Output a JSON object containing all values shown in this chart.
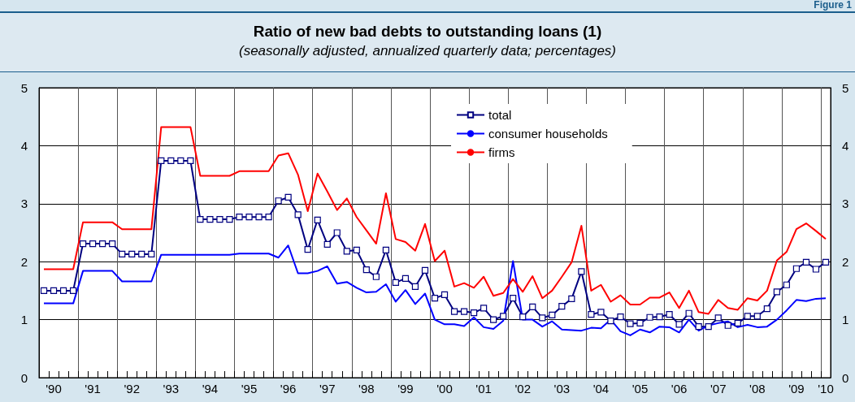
{
  "chart_data": {
    "type": "line",
    "title": "Ratio of new bad debts to outstanding loans (1)",
    "subtitle": "(seasonally adjusted, annualized quarterly data; percentages)",
    "annotations": [
      "Figure 1"
    ],
    "categories": [
      null,
      "'90",
      null,
      null,
      null,
      "'91",
      null,
      null,
      null,
      "'92",
      null,
      null,
      null,
      "'93",
      null,
      null,
      null,
      "'94",
      null,
      null,
      null,
      "'95",
      null,
      null,
      null,
      "'96",
      null,
      null,
      null,
      "'97",
      null,
      null,
      null,
      "'98",
      null,
      null,
      null,
      "'99",
      null,
      null,
      null,
      "'00",
      null,
      null,
      null,
      "'01",
      null,
      null,
      null,
      "'02",
      null,
      null,
      null,
      "'03",
      null,
      null,
      null,
      "'04",
      null,
      null,
      null,
      "'05",
      null,
      null,
      null,
      "'06",
      null,
      null,
      null,
      "'07",
      null,
      null,
      null,
      "'08",
      null,
      null,
      null,
      "'09",
      null,
      null,
      "'10"
    ],
    "series": [
      {
        "name": "total",
        "color": "#000080",
        "marker": "square",
        "values": [
          1.5,
          1.5,
          1.5,
          1.5,
          2.31,
          2.31,
          2.31,
          2.31,
          2.13,
          2.13,
          2.13,
          2.13,
          3.74,
          3.74,
          3.74,
          3.74,
          2.73,
          2.73,
          2.73,
          2.73,
          2.77,
          2.77,
          2.77,
          2.77,
          3.05,
          3.11,
          2.81,
          2.21,
          2.72,
          2.3,
          2.5,
          2.18,
          2.2,
          1.86,
          1.74,
          2.2,
          1.64,
          1.71,
          1.57,
          1.85,
          1.37,
          1.43,
          1.14,
          1.14,
          1.12,
          1.2,
          1.0,
          1.06,
          1.37,
          1.05,
          1.22,
          1.03,
          1.08,
          1.23,
          1.36,
          1.83,
          1.09,
          1.13,
          0.98,
          1.05,
          0.93,
          0.94,
          1.04,
          1.05,
          1.09,
          0.92,
          1.11,
          0.88,
          0.88,
          1.03,
          0.9,
          0.94,
          1.06,
          1.06,
          1.19,
          1.48,
          1.6,
          1.88,
          1.99,
          1.87,
          1.99
        ]
      },
      {
        "name": "consumer households",
        "color": "#0000ff",
        "marker": "none",
        "values": [
          1.28,
          1.28,
          1.28,
          1.28,
          1.84,
          1.84,
          1.84,
          1.84,
          1.66,
          1.66,
          1.66,
          1.66,
          2.12,
          2.12,
          2.12,
          2.12,
          2.12,
          2.12,
          2.12,
          2.12,
          2.14,
          2.14,
          2.14,
          2.14,
          2.07,
          2.28,
          1.8,
          1.8,
          1.84,
          1.92,
          1.62,
          1.65,
          1.55,
          1.47,
          1.48,
          1.61,
          1.31,
          1.51,
          1.27,
          1.45,
          1.0,
          0.92,
          0.92,
          0.89,
          1.04,
          0.87,
          0.84,
          0.98,
          2.01,
          1.0,
          1.0,
          0.88,
          0.97,
          0.83,
          0.82,
          0.81,
          0.86,
          0.85,
          1.0,
          0.8,
          0.73,
          0.83,
          0.78,
          0.88,
          0.87,
          0.78,
          1.0,
          0.81,
          0.9,
          0.94,
          0.97,
          0.87,
          0.91,
          0.87,
          0.88,
          1.0,
          1.16,
          1.34,
          1.32,
          1.36,
          1.37
        ]
      },
      {
        "name": "firms",
        "color": "#ff0000",
        "marker": "none",
        "values": [
          1.87,
          1.87,
          1.87,
          1.87,
          2.68,
          2.68,
          2.68,
          2.68,
          2.56,
          2.56,
          2.56,
          2.56,
          4.32,
          4.32,
          4.32,
          4.32,
          3.48,
          3.48,
          3.48,
          3.48,
          3.56,
          3.56,
          3.56,
          3.56,
          3.83,
          3.87,
          3.5,
          2.87,
          3.52,
          3.21,
          2.89,
          3.09,
          2.77,
          2.54,
          2.31,
          3.18,
          2.39,
          2.34,
          2.19,
          2.65,
          2.01,
          2.19,
          1.57,
          1.63,
          1.55,
          1.74,
          1.41,
          1.46,
          1.7,
          1.48,
          1.75,
          1.37,
          1.5,
          1.74,
          1.99,
          2.62,
          1.5,
          1.6,
          1.31,
          1.42,
          1.26,
          1.26,
          1.38,
          1.38,
          1.47,
          1.2,
          1.5,
          1.13,
          1.1,
          1.34,
          1.2,
          1.17,
          1.37,
          1.33,
          1.5,
          2.02,
          2.17,
          2.56,
          2.66,
          2.53,
          2.39
        ]
      }
    ],
    "ylim": [
      0,
      5
    ],
    "yticks": [
      0,
      1,
      2,
      3,
      4,
      5
    ],
    "y2lim": [
      0,
      5
    ],
    "y2ticks": [
      0,
      1,
      2,
      3,
      4,
      5
    ],
    "grid": true,
    "legend": "top"
  }
}
